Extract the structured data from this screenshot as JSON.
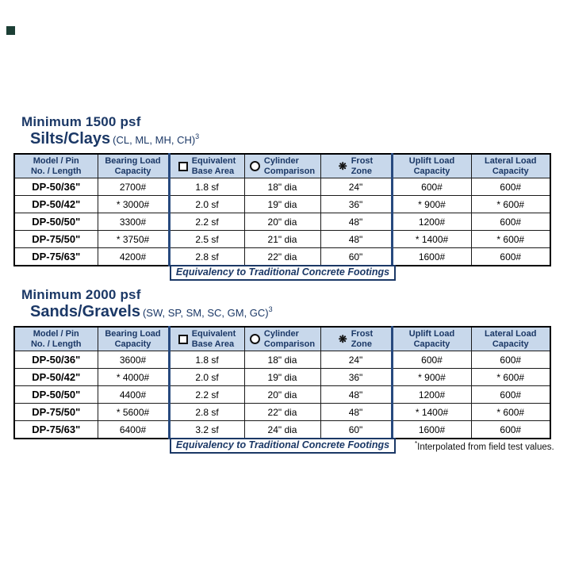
{
  "corner_mark": {
    "color": "#1c3f35"
  },
  "colors": {
    "navy_text": "#1b3866",
    "header_background": "#c8d8eb",
    "group_border_blue": "#27497e",
    "grid_black": "#1a1a1a"
  },
  "icons": {
    "snowflake": "❋",
    "square": "□",
    "circle": "○"
  },
  "equivalency_label": "Equivalency to Traditional Concrete Footings",
  "footnote": {
    "mark": "*",
    "text": "Interpolated from field test values."
  },
  "columns": [
    {
      "name": "model-pin",
      "lines": [
        "Model / Pin",
        "No. / Length"
      ],
      "icon": null
    },
    {
      "name": "bearing-load-capacity",
      "lines": [
        "Bearing Load",
        "Capacity"
      ],
      "icon": null
    },
    {
      "name": "equivalent-base-area",
      "lines": [
        "Equivalent",
        "Base Area"
      ],
      "icon": "square"
    },
    {
      "name": "cylinder-comparison",
      "lines": [
        "Cylinder",
        "Comparison"
      ],
      "icon": "circle"
    },
    {
      "name": "frost-zone",
      "lines": [
        "Frost",
        "Zone"
      ],
      "icon": "snowflake"
    },
    {
      "name": "uplift-load-capacity",
      "lines": [
        "Uplift Load",
        "Capacity"
      ],
      "icon": null
    },
    {
      "name": "lateral-load-capacity",
      "lines": [
        "Lateral Load",
        "Capacity"
      ],
      "icon": null
    }
  ],
  "tables": [
    {
      "title": "Minimum 1500 psf",
      "subtitle": "Silts/Clays",
      "subtitle_note": "(CL, ML, MH, CH)",
      "subtitle_sup": "3",
      "rows": [
        [
          "DP-50/36\"",
          "2700#",
          "1.8 sf",
          "18\" dia",
          "24\"",
          "600#",
          "600#"
        ],
        [
          "DP-50/42\"",
          "* 3000#",
          "2.0 sf",
          "19\" dia",
          "36\"",
          "* 900#",
          "* 600#"
        ],
        [
          "DP-50/50\"",
          "3300#",
          "2.2 sf",
          "20\" dia",
          "48\"",
          "1200#",
          "600#"
        ],
        [
          "DP-75/50\"",
          "* 3750#",
          "2.5 sf",
          "21\" dia",
          "48\"",
          "* 1400#",
          "* 600#"
        ],
        [
          "DP-75/63\"",
          "4200#",
          "2.8 sf",
          "22\" dia",
          "60\"",
          "1600#",
          "600#"
        ]
      ]
    },
    {
      "title": "Minimum 2000 psf",
      "subtitle": "Sands/Gravels",
      "subtitle_note": "(SW, SP, SM, SC, GM, GC)",
      "subtitle_sup": "3",
      "rows": [
        [
          "DP-50/36\"",
          "3600#",
          "1.8 sf",
          "18\" dia",
          "24\"",
          "600#",
          "600#"
        ],
        [
          "DP-50/42\"",
          "* 4000#",
          "2.0 sf",
          "19\" dia",
          "36\"",
          "* 900#",
          "* 600#"
        ],
        [
          "DP-50/50\"",
          "4400#",
          "2.2 sf",
          "20\" dia",
          "48\"",
          "1200#",
          "600#"
        ],
        [
          "DP-75/50\"",
          "* 5600#",
          "2.8 sf",
          "22\" dia",
          "48\"",
          "* 1400#",
          "* 600#"
        ],
        [
          "DP-75/63\"",
          "6400#",
          "3.2 sf",
          "24\" dia",
          "60\"",
          "1600#",
          "600#"
        ]
      ]
    }
  ]
}
